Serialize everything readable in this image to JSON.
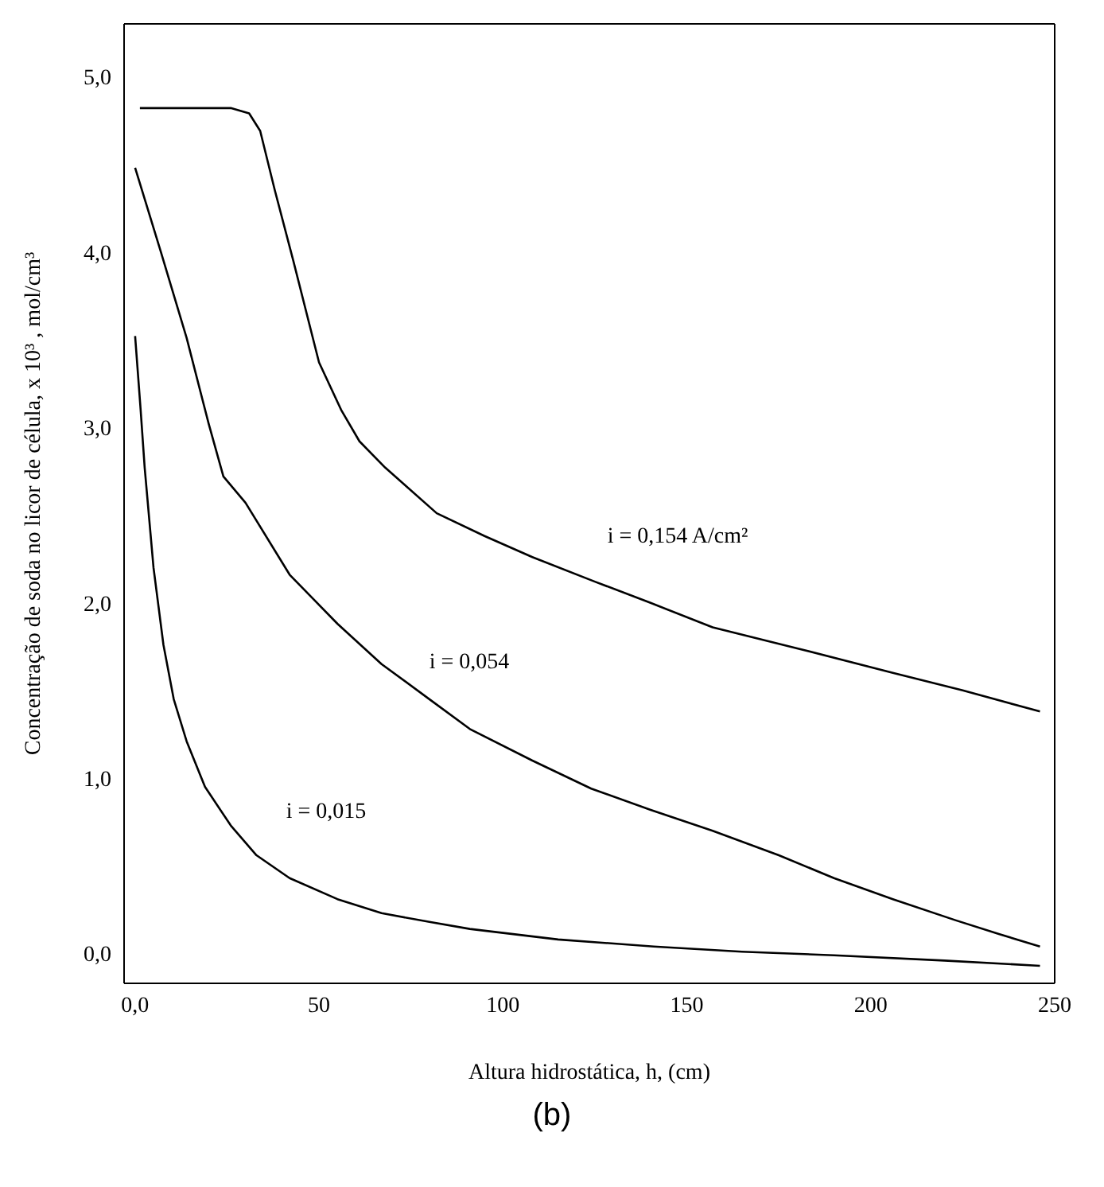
{
  "chart_data": {
    "type": "line",
    "xlabel": "Altura hidrostática, h, (cm)",
    "ylabel": "Concentração de soda no licor de célula, x 10³ , mol/cm³",
    "xlim": [
      -3,
      250
    ],
    "ylim": [
      -0.17,
      5.3
    ],
    "xticks": [
      {
        "value": 0,
        "label": "0,0"
      },
      50,
      100,
      150,
      200,
      250
    ],
    "yticks": [
      {
        "value": 0,
        "label": "0,0"
      },
      {
        "value": 1,
        "label": "1,0"
      },
      {
        "value": 2,
        "label": "2,0"
      },
      {
        "value": 3,
        "label": "3,0"
      },
      {
        "value": 4,
        "label": "4,0"
      },
      {
        "value": 5,
        "label": "5,0"
      }
    ],
    "marker": "none",
    "line_style": "solid",
    "series": [
      {
        "color": "#000000",
        "x": [
          1.3,
          10,
          20,
          26,
          31,
          34,
          38,
          43,
          50,
          56,
          61,
          68,
          82,
          95,
          108,
          125,
          140,
          157,
          180,
          206,
          225,
          246
        ],
        "values": [
          4.82,
          4.82,
          4.82,
          4.82,
          4.79,
          4.69,
          4.35,
          3.95,
          3.37,
          3.1,
          2.92,
          2.77,
          2.51,
          2.38,
          2.26,
          2.12,
          2.0,
          1.86,
          1.74,
          1.6,
          1.5,
          1.38
        ]
      },
      {
        "color": "#000000",
        "x": [
          0,
          7,
          14,
          20,
          24,
          30,
          42,
          55,
          67,
          80,
          91,
          108,
          124,
          140,
          157,
          175,
          190,
          206,
          223,
          235,
          246
        ],
        "values": [
          4.48,
          4.0,
          3.51,
          3.02,
          2.72,
          2.57,
          2.16,
          1.88,
          1.65,
          1.45,
          1.28,
          1.1,
          0.94,
          0.82,
          0.7,
          0.56,
          0.43,
          0.31,
          0.19,
          0.11,
          0.04
        ]
      },
      {
        "color": "#000000",
        "x": [
          0,
          1.5,
          2.6,
          5,
          7.7,
          10.5,
          14,
          19,
          26,
          33,
          42,
          55,
          67,
          80,
          91,
          115,
          141,
          165,
          190,
          220,
          246
        ],
        "values": [
          3.52,
          3.1,
          2.77,
          2.2,
          1.76,
          1.45,
          1.21,
          0.95,
          0.73,
          0.56,
          0.43,
          0.31,
          0.23,
          0.18,
          0.14,
          0.08,
          0.04,
          0.01,
          -0.01,
          -0.04,
          -0.07
        ]
      }
    ],
    "annotations": [
      "i = 0,154 A/cm²",
      "i = 0,054",
      "i = 0,015",
      "(b)"
    ]
  }
}
